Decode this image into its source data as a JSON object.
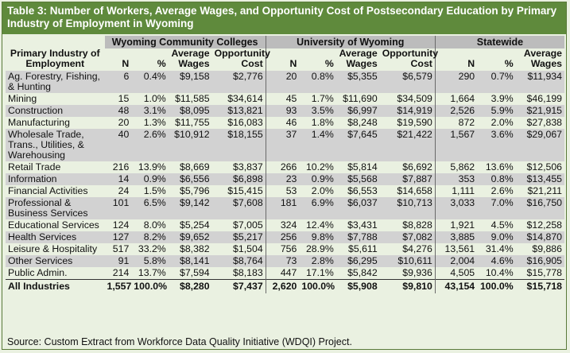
{
  "title": "Table 3: Number of Workers, Average Wages, and Opportunity Cost of Postsecondary Education by Primary Industry of Employment in Wyoming",
  "groups": {
    "wcc": "Wyoming Community Colleges",
    "uw": "University of Wyoming",
    "state": "Statewide"
  },
  "headers": {
    "industry": "Primary Industry of Employment",
    "n": "N",
    "pct": "%",
    "avg_wages": "Average Wages",
    "opp_cost": "Opportunity Cost"
  },
  "rows": [
    {
      "industry": "Ag. Forestry, Fishing, & Hunting",
      "wcc": [
        "6",
        "0.4%",
        "$9,158",
        "$2,776"
      ],
      "uw": [
        "20",
        "0.8%",
        "$5,355",
        "$6,579"
      ],
      "state": [
        "290",
        "0.7%",
        "$11,934"
      ]
    },
    {
      "industry": "Mining",
      "wcc": [
        "15",
        "1.0%",
        "$11,585",
        "$34,614"
      ],
      "uw": [
        "45",
        "1.7%",
        "$11,690",
        "$34,509"
      ],
      "state": [
        "1,664",
        "3.9%",
        "$46,199"
      ]
    },
    {
      "industry": "Construction",
      "wcc": [
        "48",
        "3.1%",
        "$8,095",
        "$13,821"
      ],
      "uw": [
        "93",
        "3.5%",
        "$6,997",
        "$14,919"
      ],
      "state": [
        "2,526",
        "5.9%",
        "$21,915"
      ]
    },
    {
      "industry": "Manufacturing",
      "wcc": [
        "20",
        "1.3%",
        "$11,755",
        "$16,083"
      ],
      "uw": [
        "46",
        "1.8%",
        "$8,248",
        "$19,590"
      ],
      "state": [
        "872",
        "2.0%",
        "$27,838"
      ]
    },
    {
      "industry": "Wholesale Trade, Trans., Utilities, & Warehousing",
      "wcc": [
        "40",
        "2.6%",
        "$10,912",
        "$18,155"
      ],
      "uw": [
        "37",
        "1.4%",
        "$7,645",
        "$21,422"
      ],
      "state": [
        "1,567",
        "3.6%",
        "$29,067"
      ]
    },
    {
      "industry": "Retail Trade",
      "wcc": [
        "216",
        "13.9%",
        "$8,669",
        "$3,837"
      ],
      "uw": [
        "266",
        "10.2%",
        "$5,814",
        "$6,692"
      ],
      "state": [
        "5,862",
        "13.6%",
        "$12,506"
      ]
    },
    {
      "industry": "Information",
      "wcc": [
        "14",
        "0.9%",
        "$6,556",
        "$6,898"
      ],
      "uw": [
        "23",
        "0.9%",
        "$5,568",
        "$7,887"
      ],
      "state": [
        "353",
        "0.8%",
        "$13,455"
      ]
    },
    {
      "industry": "Financial Activities",
      "wcc": [
        "24",
        "1.5%",
        "$5,796",
        "$15,415"
      ],
      "uw": [
        "53",
        "2.0%",
        "$6,553",
        "$14,658"
      ],
      "state": [
        "1,111",
        "2.6%",
        "$21,211"
      ]
    },
    {
      "industry": "Professional & Business Services",
      "wcc": [
        "101",
        "6.5%",
        "$9,142",
        "$7,608"
      ],
      "uw": [
        "181",
        "6.9%",
        "$6,037",
        "$10,713"
      ],
      "state": [
        "3,033",
        "7.0%",
        "$16,750"
      ]
    },
    {
      "industry": "Educational Services",
      "wcc": [
        "124",
        "8.0%",
        "$5,254",
        "$7,005"
      ],
      "uw": [
        "324",
        "12.4%",
        "$3,431",
        "$8,828"
      ],
      "state": [
        "1,921",
        "4.5%",
        "$12,258"
      ]
    },
    {
      "industry": "Health Services",
      "wcc": [
        "127",
        "8.2%",
        "$9,652",
        "$5,217"
      ],
      "uw": [
        "256",
        "9.8%",
        "$7,788",
        "$7,082"
      ],
      "state": [
        "3,885",
        "9.0%",
        "$14,870"
      ]
    },
    {
      "industry": "Leisure & Hospitality",
      "wcc": [
        "517",
        "33.2%",
        "$8,382",
        "$1,504"
      ],
      "uw": [
        "756",
        "28.9%",
        "$5,611",
        "$4,276"
      ],
      "state": [
        "13,561",
        "31.4%",
        "$9,886"
      ]
    },
    {
      "industry": "Other Services",
      "wcc": [
        "91",
        "5.8%",
        "$8,141",
        "$8,764"
      ],
      "uw": [
        "73",
        "2.8%",
        "$6,295",
        "$10,611"
      ],
      "state": [
        "2,004",
        "4.6%",
        "$16,905"
      ]
    },
    {
      "industry": "Public Admin.",
      "wcc": [
        "214",
        "13.7%",
        "$7,594",
        "$8,183"
      ],
      "uw": [
        "447",
        "17.1%",
        "$5,842",
        "$9,936"
      ],
      "state": [
        "4,505",
        "10.4%",
        "$15,778"
      ]
    }
  ],
  "total": {
    "industry": "All Industries",
    "wcc": [
      "1,557",
      "100.0%",
      "$8,280",
      "$7,437"
    ],
    "uw": [
      "2,620",
      "100.0%",
      "$5,908",
      "$9,810"
    ],
    "state": [
      "43,154",
      "100.0%",
      "$15,718"
    ]
  },
  "source": "Source: Custom Extract from Workforce Data Quality Initiative (WDQI) Project."
}
